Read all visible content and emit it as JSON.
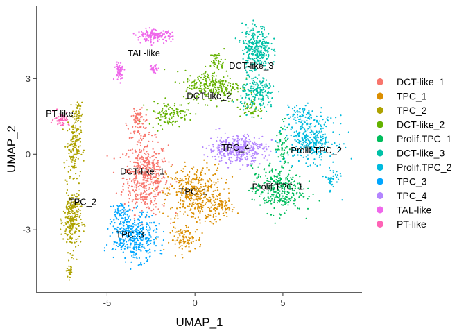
{
  "chart_data": {
    "type": "scatter",
    "xlabel": "UMAP_1",
    "ylabel": "UMAP_2",
    "xlim": [
      -9.0,
      9.5
    ],
    "ylim": [
      -5.5,
      5.9
    ],
    "x_ticks": [
      -5,
      0,
      5
    ],
    "x_tick_labels": [
      "-5",
      "0",
      "5"
    ],
    "y_ticks": [
      -3,
      0,
      3
    ],
    "y_tick_labels": [
      "-3",
      "0",
      "3"
    ],
    "grid": false,
    "legend_position": "right",
    "series": [
      {
        "name": "DCT-like_1",
        "color": "#F8766D",
        "label": "DCT-like_1",
        "label_pos": [
          -3.0,
          -0.7
        ],
        "regions": [
          {
            "center": [
              -2.8,
              -0.9
            ],
            "spread": [
              1.4,
              1.6
            ],
            "count": 480
          },
          {
            "center": [
              -3.2,
              1.2
            ],
            "spread": [
              0.7,
              0.6
            ],
            "count": 70
          },
          {
            "center": [
              -3.3,
              1.5
            ],
            "spread": [
              0.2,
              0.3
            ],
            "count": 25
          }
        ]
      },
      {
        "name": "TPC_1",
        "color": "#DB8E00",
        "label": "TPC_1",
        "label_pos": [
          -0.1,
          -1.5
        ],
        "regions": [
          {
            "center": [
              0.0,
              -1.6
            ],
            "spread": [
              1.8,
              1.3
            ],
            "count": 420
          },
          {
            "center": [
              -0.5,
              -3.4
            ],
            "spread": [
              1.0,
              0.5
            ],
            "count": 90
          },
          {
            "center": [
              1.5,
              -2.1
            ],
            "spread": [
              0.8,
              0.5
            ],
            "count": 60
          }
        ]
      },
      {
        "name": "TPC_2",
        "color": "#AEA200",
        "label": "TPC_2",
        "label_pos": [
          -6.4,
          -1.9
        ],
        "regions": [
          {
            "center": [
              -7.0,
              -2.6
            ],
            "spread": [
              0.55,
              1.4
            ],
            "count": 260
          },
          {
            "center": [
              -6.9,
              0.3
            ],
            "spread": [
              0.45,
              1.2
            ],
            "count": 150
          },
          {
            "center": [
              -6.7,
              1.6
            ],
            "spread": [
              0.3,
              0.5
            ],
            "count": 40
          },
          {
            "center": [
              -7.1,
              -4.6
            ],
            "spread": [
              0.2,
              0.4
            ],
            "count": 25
          }
        ]
      },
      {
        "name": "DCT-like_2",
        "color": "#64B200",
        "label": "DCT-like_2",
        "label_pos": [
          0.8,
          2.3
        ],
        "regions": [
          {
            "center": [
              1.0,
              2.7
            ],
            "spread": [
              1.8,
              0.7
            ],
            "count": 260
          },
          {
            "center": [
              -1.5,
              1.6
            ],
            "spread": [
              1.3,
              0.5
            ],
            "count": 110
          },
          {
            "center": [
              1.3,
              3.7
            ],
            "spread": [
              0.5,
              0.4
            ],
            "count": 40
          },
          {
            "center": [
              3.2,
              1.8
            ],
            "spread": [
              0.7,
              0.4
            ],
            "count": 40
          }
        ]
      },
      {
        "name": "Prolif.TPC_1",
        "color": "#00BD5C",
        "label": "Prolif.TPC_1",
        "label_pos": [
          4.7,
          -1.3
        ],
        "regions": [
          {
            "center": [
              4.7,
              -1.4
            ],
            "spread": [
              1.6,
              1.0
            ],
            "count": 300
          },
          {
            "center": [
              5.0,
              0.4
            ],
            "spread": [
              0.4,
              1.0
            ],
            "count": 60
          }
        ]
      },
      {
        "name": "DCT-like_3",
        "color": "#00C1A7",
        "label": "DCT-like_3",
        "label_pos": [
          3.2,
          3.5
        ],
        "regions": [
          {
            "center": [
              3.5,
              4.2
            ],
            "spread": [
              0.9,
              1.0
            ],
            "count": 300
          },
          {
            "center": [
              3.6,
              2.4
            ],
            "spread": [
              1.1,
              0.8
            ],
            "count": 180
          }
        ]
      },
      {
        "name": "Prolif.TPC_2",
        "color": "#00BADE",
        "label": "Prolif.TPC_2",
        "label_pos": [
          6.9,
          0.15
        ],
        "regions": [
          {
            "center": [
              6.6,
              0.6
            ],
            "spread": [
              1.6,
              1.0
            ],
            "count": 300
          },
          {
            "center": [
              7.8,
              -1.0
            ],
            "spread": [
              0.5,
              0.6
            ],
            "count": 40
          },
          {
            "center": [
              6.0,
              1.6
            ],
            "spread": [
              0.9,
              0.4
            ],
            "count": 60
          }
        ]
      },
      {
        "name": "TPC_3",
        "color": "#00A6FF",
        "label": "TPC_3",
        "label_pos": [
          -3.7,
          -3.2
        ],
        "regions": [
          {
            "center": [
              -3.4,
              -3.3
            ],
            "spread": [
              1.4,
              1.0
            ],
            "count": 380
          },
          {
            "center": [
              -4.2,
              -2.3
            ],
            "spread": [
              0.6,
              0.4
            ],
            "count": 60
          }
        ]
      },
      {
        "name": "TPC_4",
        "color": "#B385FF",
        "label": "TPC_4",
        "label_pos": [
          2.3,
          0.25
        ],
        "regions": [
          {
            "center": [
              2.4,
              0.2
            ],
            "spread": [
              1.8,
              0.6
            ],
            "count": 380
          }
        ]
      },
      {
        "name": "TAL-like",
        "color": "#EF67EB",
        "label": "TAL-like",
        "label_pos": [
          -2.9,
          4.0
        ],
        "regions": [
          {
            "center": [
              -2.3,
              4.7
            ],
            "spread": [
              1.1,
              0.25
            ],
            "count": 150
          },
          {
            "center": [
              -4.3,
              3.3
            ],
            "spread": [
              0.3,
              0.4
            ],
            "count": 60
          },
          {
            "center": [
              -2.3,
              3.4
            ],
            "spread": [
              0.3,
              0.2
            ],
            "count": 30
          }
        ]
      },
      {
        "name": "PT-like",
        "color": "#FF63B6",
        "label": "PT-like",
        "label_pos": [
          -7.7,
          1.6
        ],
        "regions": [
          {
            "center": [
              -7.6,
              1.4
            ],
            "spread": [
              0.5,
              0.3
            ],
            "count": 50
          }
        ]
      }
    ]
  }
}
